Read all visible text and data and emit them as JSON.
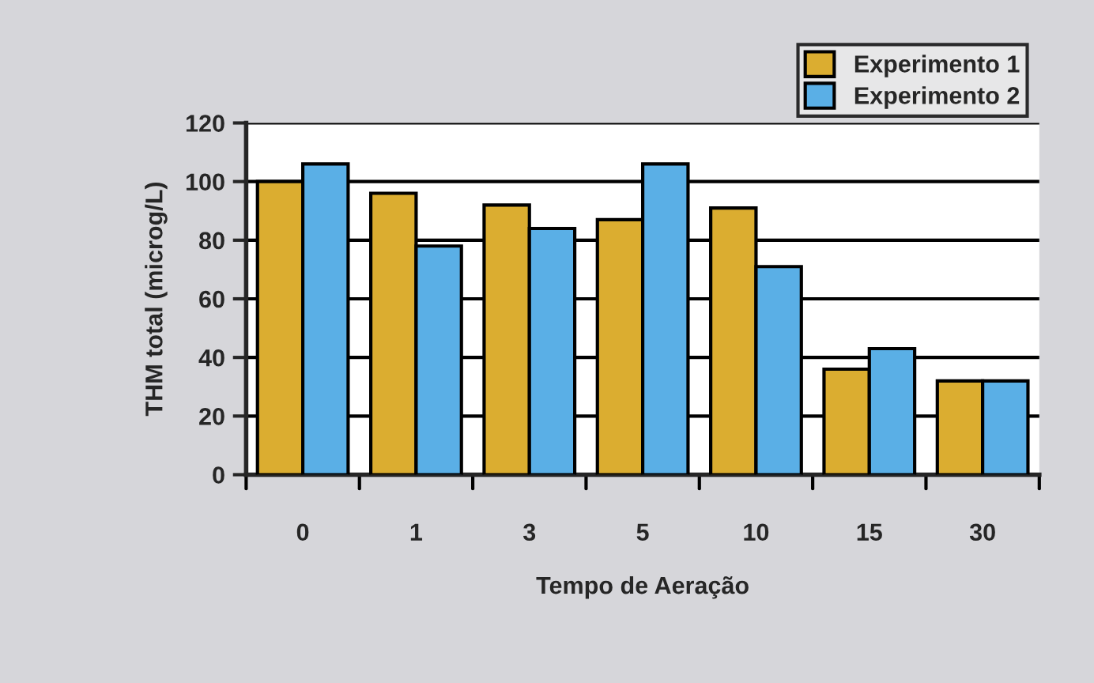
{
  "chart_data": {
    "type": "bar",
    "xlabel": "Tempo de Aeração",
    "ylabel": "THM total (microg/L)",
    "categories": [
      "0",
      "1",
      "3",
      "5",
      "10",
      "15",
      "30"
    ],
    "series": [
      {
        "name": "Experimento 1",
        "color": "#dbad30",
        "values": [
          100,
          96,
          92,
          87,
          91,
          36,
          32
        ]
      },
      {
        "name": "Experimento 2",
        "color": "#5aafe6",
        "values": [
          106,
          78,
          84,
          106,
          71,
          43,
          32
        ]
      }
    ],
    "ylim": [
      0,
      120
    ],
    "yticks": [
      0,
      20,
      40,
      60,
      80,
      100,
      120
    ],
    "grid": "y",
    "legend": "top right"
  }
}
